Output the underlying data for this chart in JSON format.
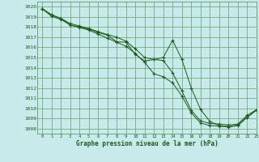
{
  "xlabel": "Graphe pression niveau de la mer (hPa)",
  "bg_color": "#c8eaea",
  "grid_color": "#4e8c4e",
  "line_color": "#1a5c1a",
  "xlim": [
    -0.5,
    23
  ],
  "ylim": [
    1007.5,
    1020.5
  ],
  "yticks": [
    1008,
    1009,
    1010,
    1011,
    1012,
    1013,
    1014,
    1015,
    1016,
    1017,
    1018,
    1019,
    1020
  ],
  "xticks": [
    0,
    1,
    2,
    3,
    4,
    5,
    6,
    7,
    8,
    9,
    10,
    11,
    12,
    13,
    14,
    15,
    16,
    17,
    18,
    19,
    20,
    21,
    22,
    23
  ],
  "series1_x": [
    0,
    1,
    2,
    3,
    4,
    5,
    6,
    7,
    8,
    9,
    10,
    11,
    12,
    13,
    14,
    15,
    16,
    17,
    18,
    19,
    20,
    21,
    22,
    23
  ],
  "series1_y": [
    1019.8,
    1019.2,
    1018.85,
    1018.35,
    1018.1,
    1017.85,
    1017.55,
    1017.25,
    1017.0,
    1016.6,
    1015.85,
    1015.0,
    1014.8,
    1014.7,
    1013.5,
    1011.7,
    1009.8,
    1008.75,
    1008.5,
    1008.45,
    1008.35,
    1008.45,
    1009.3,
    1009.85
  ],
  "series2_x": [
    0,
    1,
    2,
    3,
    4,
    5,
    6,
    7,
    8,
    9,
    10,
    11,
    12,
    13,
    14,
    15,
    16,
    17,
    18,
    19,
    20,
    21,
    22,
    23
  ],
  "series2_y": [
    1019.8,
    1019.05,
    1018.75,
    1018.2,
    1017.95,
    1017.7,
    1017.3,
    1016.9,
    1016.5,
    1016.1,
    1015.4,
    1014.5,
    1013.4,
    1013.1,
    1012.5,
    1011.2,
    1009.55,
    1008.55,
    1008.3,
    1008.25,
    1008.15,
    1008.3,
    1009.1,
    1009.85
  ],
  "series3_x": [
    0,
    1,
    2,
    3,
    4,
    5,
    6,
    7,
    8,
    9,
    10,
    11,
    12,
    13,
    14,
    15,
    16,
    17,
    18,
    19,
    20,
    21,
    22,
    23
  ],
  "series3_y": [
    1019.8,
    1019.2,
    1018.85,
    1018.2,
    1018.0,
    1017.8,
    1017.45,
    1017.2,
    1016.55,
    1016.5,
    1015.3,
    1014.65,
    1014.8,
    1015.0,
    1016.7,
    1014.8,
    1012.0,
    1009.9,
    1008.7,
    1008.3,
    1008.2,
    1008.35,
    1009.1,
    1009.8
  ]
}
